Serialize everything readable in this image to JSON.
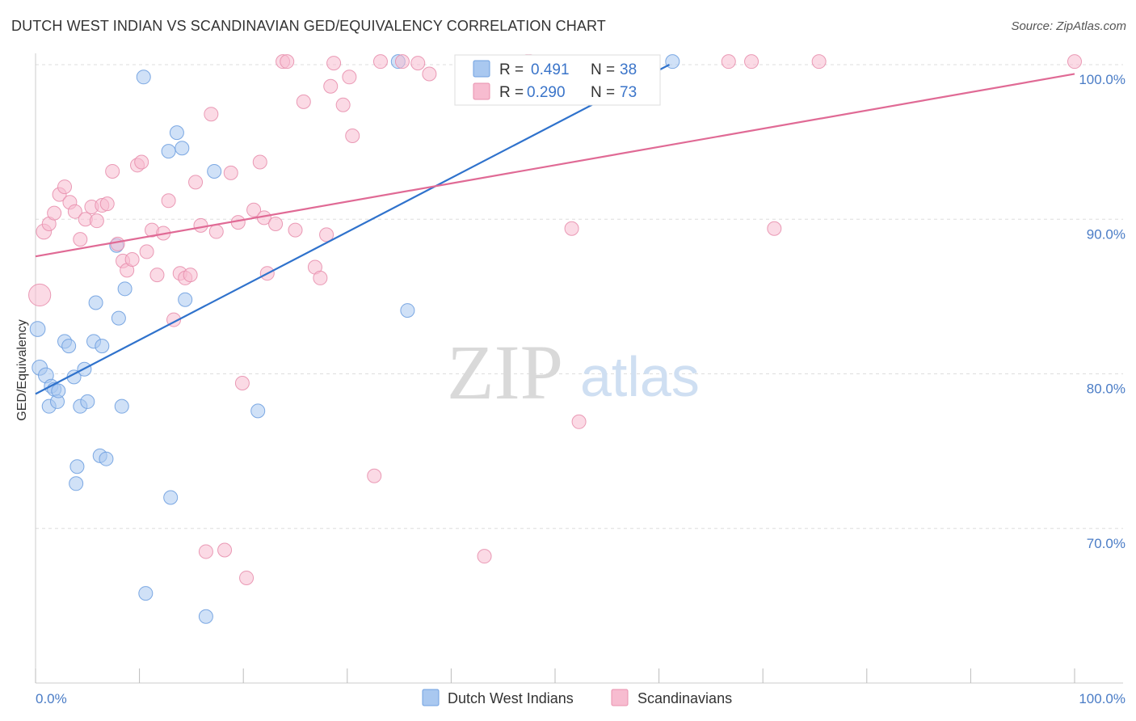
{
  "header": {
    "title": "DUTCH WEST INDIAN VS SCANDINAVIAN GED/EQUIVALENCY CORRELATION CHART",
    "source": "Source: ZipAtlas.com"
  },
  "watermark": {
    "zip": "ZIP",
    "atlas": "atlas"
  },
  "legend": {
    "rows": [
      {
        "r_label": "R =",
        "r_value": "0.491",
        "n_label": "N =",
        "n_value": "38",
        "color": "#a9c8f0",
        "stroke": "#6fa0e0"
      },
      {
        "r_label": "R =",
        "r_value": "0.290",
        "n_label": "N =",
        "n_value": "73",
        "color": "#f7bcd0",
        "stroke": "#e890ae"
      }
    ]
  },
  "chart_data": {
    "type": "scatter",
    "title": "DUTCH WEST INDIAN VS SCANDINAVIAN GED/EQUIVALENCY CORRELATION CHART",
    "xlabel": "",
    "ylabel": "GED/Equivalency",
    "xlim": [
      0,
      100
    ],
    "ylim": [
      60,
      100
    ],
    "x_ticks": [
      "0.0%",
      "100.0%"
    ],
    "y_ticks": [
      {
        "value": 70,
        "label": "70.0%"
      },
      {
        "value": 80,
        "label": "80.0%"
      },
      {
        "value": 90,
        "label": "90.0%"
      },
      {
        "value": 100,
        "label": "100.0%"
      }
    ],
    "grid": true,
    "series": [
      {
        "name": "Dutch West Indians",
        "color": "#a9c8f0",
        "stroke": "#6fa0e0",
        "line_color": "#2f72cc",
        "trend": {
          "x0": 0,
          "y0": 78.7,
          "x1": 61,
          "y1": 100.0
        },
        "points": [
          [
            0.2,
            82.9
          ],
          [
            0.4,
            80.4
          ],
          [
            1.0,
            79.9
          ],
          [
            1.3,
            77.9
          ],
          [
            1.5,
            79.2
          ],
          [
            1.8,
            79.0
          ],
          [
            2.1,
            78.2
          ],
          [
            2.2,
            78.9
          ],
          [
            2.8,
            82.1
          ],
          [
            3.2,
            81.8
          ],
          [
            3.7,
            79.8
          ],
          [
            3.9,
            72.9
          ],
          [
            4.0,
            74.0
          ],
          [
            4.3,
            77.9
          ],
          [
            4.7,
            80.3
          ],
          [
            5.0,
            78.2
          ],
          [
            5.6,
            82.1
          ],
          [
            5.8,
            84.6
          ],
          [
            6.4,
            81.8
          ],
          [
            6.2,
            74.7
          ],
          [
            6.8,
            74.5
          ],
          [
            7.8,
            88.3
          ],
          [
            8.0,
            83.6
          ],
          [
            8.3,
            77.9
          ],
          [
            8.6,
            85.5
          ],
          [
            10.4,
            99.2
          ],
          [
            10.6,
            65.8
          ],
          [
            12.8,
            94.4
          ],
          [
            13.0,
            72.0
          ],
          [
            13.6,
            95.6
          ],
          [
            14.1,
            94.6
          ],
          [
            14.4,
            84.8
          ],
          [
            16.4,
            64.3
          ],
          [
            17.2,
            93.1
          ],
          [
            21.4,
            77.6
          ],
          [
            34.9,
            100.2
          ],
          [
            35.8,
            84.1
          ],
          [
            61.3,
            100.2
          ]
        ],
        "sizes": [
          11,
          11,
          11,
          10,
          10,
          10,
          10,
          10,
          10,
          10,
          10,
          10,
          10,
          10,
          10,
          10,
          10,
          10,
          10,
          10,
          10,
          10,
          10,
          10,
          10,
          10,
          10,
          10,
          10,
          10,
          10,
          10,
          10,
          10,
          10,
          10,
          10,
          10
        ]
      },
      {
        "name": "Scandinavians",
        "color": "#f7bcd0",
        "stroke": "#e890ae",
        "line_color": "#e06a95",
        "trend": {
          "x0": 0,
          "y0": 87.6,
          "x1": 100,
          "y1": 99.4
        },
        "points": [
          [
            0.4,
            85.1
          ],
          [
            0.8,
            89.2
          ],
          [
            1.3,
            89.7
          ],
          [
            1.8,
            90.4
          ],
          [
            2.3,
            91.6
          ],
          [
            2.8,
            92.1
          ],
          [
            3.3,
            91.1
          ],
          [
            3.8,
            90.5
          ],
          [
            4.3,
            88.7
          ],
          [
            4.8,
            90.0
          ],
          [
            5.4,
            90.8
          ],
          [
            5.9,
            89.9
          ],
          [
            6.4,
            90.9
          ],
          [
            6.9,
            91.0
          ],
          [
            7.4,
            93.1
          ],
          [
            7.9,
            88.4
          ],
          [
            8.4,
            87.3
          ],
          [
            8.8,
            86.7
          ],
          [
            9.3,
            87.4
          ],
          [
            9.8,
            93.5
          ],
          [
            10.2,
            93.7
          ],
          [
            10.7,
            87.9
          ],
          [
            11.2,
            89.3
          ],
          [
            11.7,
            86.4
          ],
          [
            12.3,
            89.1
          ],
          [
            12.8,
            91.2
          ],
          [
            13.3,
            83.5
          ],
          [
            13.9,
            86.5
          ],
          [
            14.4,
            86.2
          ],
          [
            14.9,
            86.4
          ],
          [
            15.4,
            92.4
          ],
          [
            15.9,
            89.6
          ],
          [
            16.4,
            68.5
          ],
          [
            16.9,
            96.8
          ],
          [
            17.4,
            89.2
          ],
          [
            18.2,
            68.6
          ],
          [
            18.8,
            93.0
          ],
          [
            19.5,
            89.8
          ],
          [
            19.9,
            79.4
          ],
          [
            20.3,
            66.8
          ],
          [
            21.0,
            90.6
          ],
          [
            21.6,
            93.7
          ],
          [
            22.0,
            90.1
          ],
          [
            22.3,
            86.5
          ],
          [
            23.1,
            89.7
          ],
          [
            23.8,
            100.2
          ],
          [
            24.2,
            100.2
          ],
          [
            25.0,
            89.3
          ],
          [
            25.8,
            97.6
          ],
          [
            26.9,
            86.9
          ],
          [
            27.4,
            86.2
          ],
          [
            28.0,
            89.0
          ],
          [
            28.4,
            98.6
          ],
          [
            28.7,
            100.1
          ],
          [
            29.6,
            97.4
          ],
          [
            30.2,
            99.2
          ],
          [
            30.5,
            95.4
          ],
          [
            32.6,
            73.4
          ],
          [
            33.2,
            100.2
          ],
          [
            35.3,
            100.2
          ],
          [
            36.8,
            100.1
          ],
          [
            37.9,
            99.4
          ],
          [
            43.2,
            68.2
          ],
          [
            44.4,
            99.2
          ],
          [
            47.3,
            100.2
          ],
          [
            47.6,
            100.2
          ],
          [
            51.6,
            89.4
          ],
          [
            52.3,
            76.9
          ],
          [
            66.7,
            100.2
          ],
          [
            68.9,
            100.2
          ],
          [
            71.1,
            89.4
          ],
          [
            75.4,
            100.2
          ],
          [
            100.0,
            100.2
          ]
        ],
        "sizes": [
          16,
          11,
          10,
          10,
          10,
          10,
          10,
          10,
          10,
          10,
          10,
          10,
          10,
          10,
          10,
          10,
          10,
          10,
          10,
          10,
          10,
          10,
          10,
          10,
          10,
          10,
          10,
          10,
          10,
          10,
          10,
          10,
          10,
          10,
          10,
          10,
          10,
          10,
          10,
          10,
          10,
          10,
          10,
          10,
          10,
          10,
          10,
          10,
          10,
          10,
          10,
          10,
          10,
          10,
          10,
          10,
          10,
          10,
          10,
          10,
          10,
          10,
          10,
          10,
          10,
          10,
          10,
          10,
          10,
          10,
          10,
          10,
          10
        ]
      }
    ],
    "legend_position": "top-center"
  }
}
